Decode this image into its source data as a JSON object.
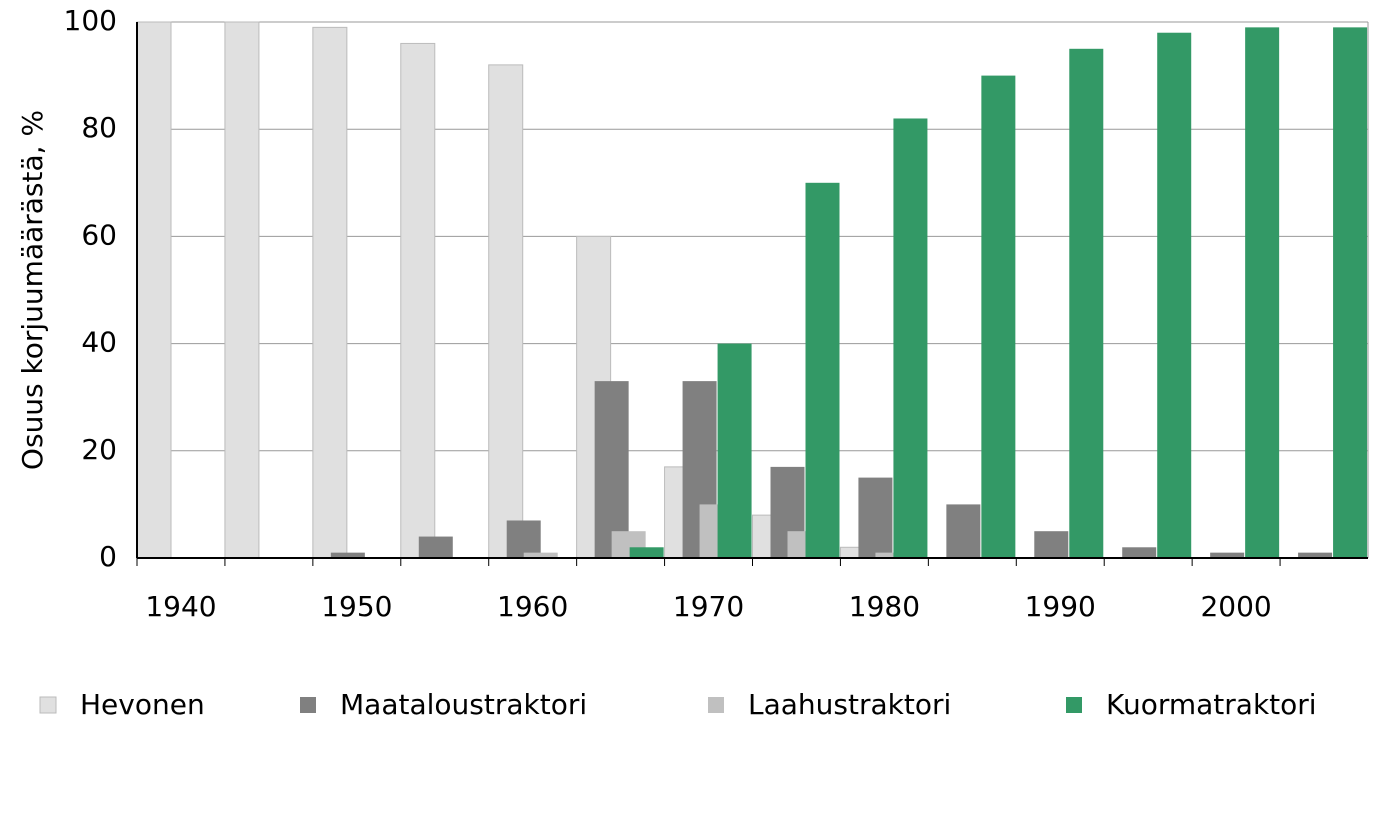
{
  "chart_data": {
    "type": "bar",
    "ylabel": "Osuus korjuumäärästä, %",
    "categories": [
      "1940",
      null,
      "1950",
      null,
      "1960",
      null,
      "1970",
      null,
      "1980",
      null,
      "1990",
      null,
      "2000",
      null
    ],
    "series": [
      {
        "name": "Hevonen",
        "color": "#e0e0e0",
        "values": [
          100,
          100,
          99,
          96,
          92,
          60,
          17,
          8,
          2,
          0,
          0,
          0,
          0,
          0
        ]
      },
      {
        "name": "Maataloustraktori",
        "color": "#808080",
        "values": [
          0,
          0,
          1,
          4,
          7,
          33,
          33,
          17,
          15,
          10,
          5,
          2,
          1,
          1
        ]
      },
      {
        "name": "Laahustraktori",
        "color": "#c0c0c0",
        "values": [
          0,
          0,
          0,
          0,
          1,
          5,
          10,
          5,
          1,
          0,
          0,
          0,
          0,
          0
        ]
      },
      {
        "name": "Kuormatraktori",
        "color": "#339966",
        "values": [
          0,
          0,
          0,
          0,
          0,
          2,
          40,
          70,
          82,
          90,
          95,
          98,
          99,
          99
        ]
      }
    ],
    "ylim": [
      0,
      100
    ],
    "yticks": [
      0,
      20,
      40,
      60,
      80,
      100
    ],
    "grid": true
  }
}
